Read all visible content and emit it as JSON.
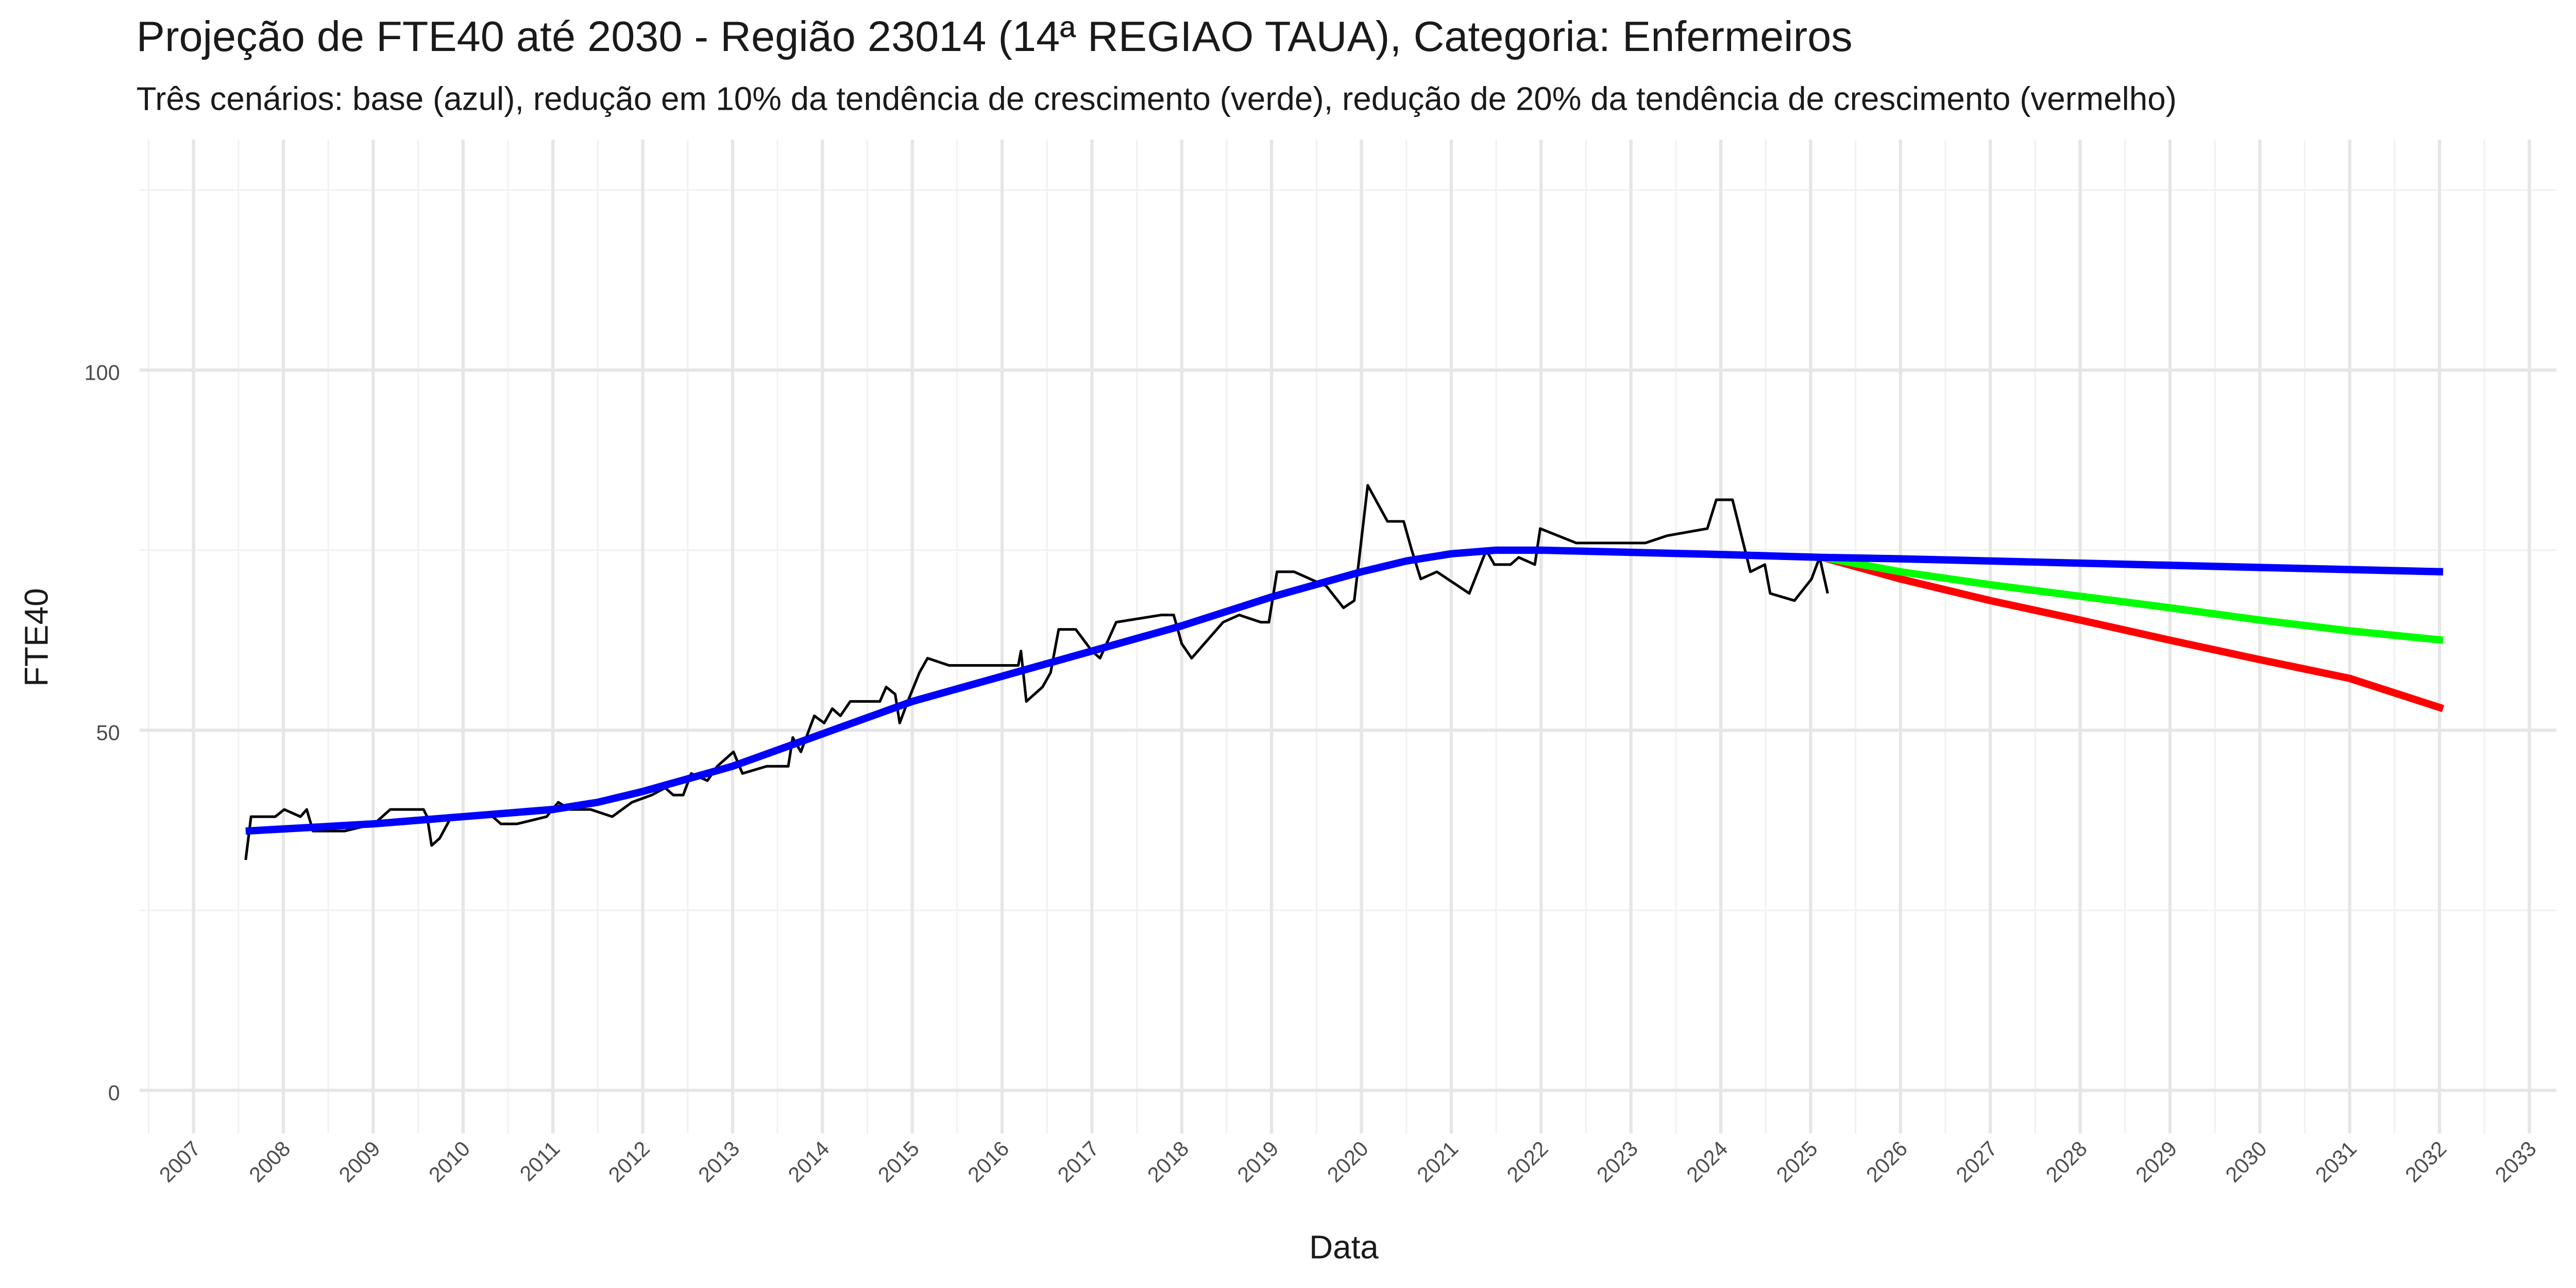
{
  "chart_data": {
    "type": "line",
    "title": "Projeção de FTE40 até 2030 - Região 23014 (14ª REGIAO TAUA), Categoria: Enfermeiros",
    "subtitle": "Três cenários: base (azul), redução em 10% da tendência de crescimento (verde), redução de 20% da tendência de crescimento (vermelho)",
    "xlabel": "Data",
    "ylabel": "FTE40",
    "xlim": [
      2006.4,
      2033.3
    ],
    "ylim": [
      -6,
      132
    ],
    "xticks": [
      2007,
      2008,
      2009,
      2010,
      2011,
      2012,
      2013,
      2014,
      2015,
      2016,
      2017,
      2018,
      2019,
      2020,
      2021,
      2022,
      2023,
      2024,
      2025,
      2026,
      2027,
      2028,
      2029,
      2030,
      2031,
      2032,
      2033
    ],
    "xminor": [
      2006.5,
      2007.5,
      2008.5,
      2009.5,
      2010.5,
      2011.5,
      2012.5,
      2013.5,
      2014.5,
      2015.5,
      2016.5,
      2017.5,
      2018.5,
      2019.5,
      2020.5,
      2021.5,
      2022.5,
      2023.5,
      2024.5,
      2025.5,
      2026.5,
      2027.5,
      2028.5,
      2029.5,
      2030.5,
      2031.5,
      2032.5
    ],
    "yticks": [
      0,
      50,
      100
    ],
    "yminor": [
      25,
      75,
      125
    ],
    "grid": true,
    "series": [
      {
        "color": "#000000",
        "width": 1.6,
        "x": [
          2007.58,
          2007.64,
          2007.91,
          2008.01,
          2008.19,
          2008.26,
          2008.33,
          2008.68,
          2009.01,
          2009.19,
          2009.56,
          2009.6,
          2009.65,
          2009.74,
          2009.87,
          2010.33,
          2010.42,
          2010.6,
          2010.93,
          2011.06,
          2011.19,
          2011.42,
          2011.66,
          2011.88,
          2012.1,
          2012.25,
          2012.34,
          2012.45,
          2012.54,
          2012.72,
          2012.83,
          2013.01,
          2013.11,
          2013.38,
          2013.62,
          2013.67,
          2013.76,
          2013.91,
          2014.02,
          2014.11,
          2014.2,
          2014.31,
          2014.64,
          2014.71,
          2014.81,
          2014.86,
          2014.95,
          2015.08,
          2015.17,
          2015.41,
          2016.18,
          2016.21,
          2016.27,
          2016.45,
          2016.54,
          2016.63,
          2016.82,
          2017.0,
          2017.09,
          2017.27,
          2017.77,
          2017.91,
          2018.0,
          2018.11,
          2018.46,
          2018.64,
          2018.88,
          2018.97,
          2019.06,
          2019.25,
          2019.61,
          2019.8,
          2019.92,
          2020.07,
          2020.29,
          2020.47,
          2020.56,
          2020.66,
          2020.84,
          2021.2,
          2021.39,
          2021.48,
          2021.66,
          2021.75,
          2021.93,
          2021.99,
          2022.39,
          2023.16,
          2023.4,
          2023.85,
          2023.95,
          2024.13,
          2024.33,
          2024.49,
          2024.55,
          2024.82,
          2025.01,
          2025.1,
          2025.19
        ],
        "values": [
          32,
          38,
          38,
          39,
          38,
          39,
          36,
          36,
          37,
          39,
          39,
          38,
          34,
          35,
          38,
          38,
          37,
          37,
          38,
          40,
          39,
          39,
          38,
          40,
          41,
          42,
          41,
          41,
          44,
          43,
          45,
          47,
          44,
          45,
          45,
          49,
          47,
          52,
          51,
          53,
          52,
          54,
          54,
          56,
          55,
          51,
          54,
          58,
          60,
          59,
          59,
          61,
          54,
          56,
          58,
          64,
          64,
          61,
          60,
          65,
          66,
          66,
          62,
          60,
          65,
          66,
          65,
          65,
          72,
          72,
          70,
          67,
          68,
          84,
          79,
          79,
          75,
          71,
          72,
          69,
          75,
          73,
          73,
          74,
          73,
          78,
          76,
          76,
          77,
          78,
          82,
          82,
          72,
          73,
          69,
          68,
          71,
          74,
          69
        ]
      },
      {
        "color": "#ff0000",
        "width": 4.5,
        "x": [
          2025.13,
          2026,
          2027,
          2028,
          2029,
          2030,
          2031,
          2032.04
        ],
        "values": [
          74,
          71,
          68,
          65.3,
          62.5,
          59.8,
          57.2,
          53
        ]
      },
      {
        "color": "#00ff00",
        "width": 4.5,
        "x": [
          2025.13,
          2026,
          2027,
          2028,
          2029,
          2030,
          2031,
          2032.04
        ],
        "values": [
          74,
          72,
          70.2,
          68.6,
          67,
          65.3,
          63.8,
          62.5
        ]
      },
      {
        "color": "#0000ff",
        "width": 4.5,
        "x": [
          2007.58,
          2009,
          2010,
          2011,
          2011.5,
          2012,
          2013,
          2014,
          2015,
          2016,
          2017,
          2018,
          2019,
          2020,
          2020.5,
          2021,
          2021.5,
          2022,
          2023,
          2024,
          2025.13,
          2026,
          2028,
          2030,
          2032.04
        ],
        "values": [
          36,
          37,
          38,
          39,
          40,
          41.5,
          45,
          49.5,
          54,
          57.5,
          61,
          64.5,
          68.5,
          72,
          73.5,
          74.5,
          75,
          75,
          74.7,
          74.4,
          74,
          73.8,
          73.2,
          72.6,
          72
        ]
      }
    ]
  }
}
